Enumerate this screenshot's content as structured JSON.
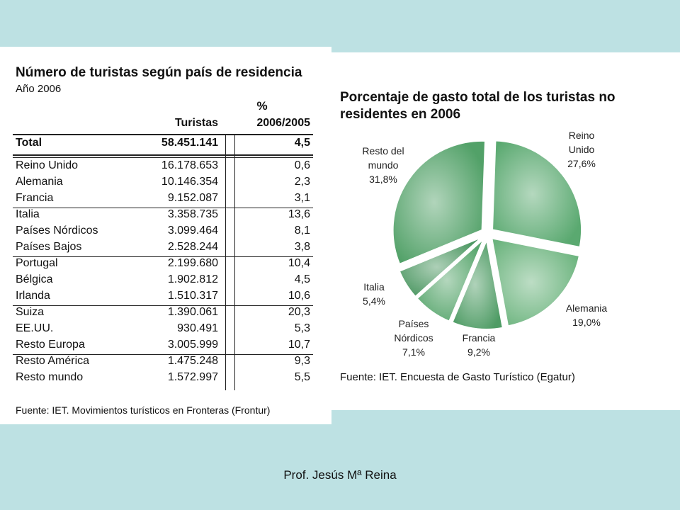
{
  "table": {
    "title": "Número de turistas según país de residencia",
    "subtitle": "Año 2006",
    "col_turistas": "Turistas",
    "col_pct_symbol": "%",
    "col_pct": "2006/2005",
    "total": {
      "name": "Total",
      "turistas": "58.451.141",
      "pct": "4,5"
    },
    "rows": [
      {
        "name": "Reino Unido",
        "turistas": "16.178.653",
        "pct": "0,6"
      },
      {
        "name": "Alemania",
        "turistas": "10.146.354",
        "pct": "2,3"
      },
      {
        "name": "Francia",
        "turistas": "9.152.087",
        "pct": "3,1"
      },
      {
        "name": "Italia",
        "turistas": "3.358.735",
        "pct": "13,6"
      },
      {
        "name": "Países Nórdicos",
        "turistas": "3.099.464",
        "pct": "8,1"
      },
      {
        "name": "Países Bajos",
        "turistas": "2.528.244",
        "pct": "3,8"
      },
      {
        "name": "Portugal",
        "turistas": "2.199.680",
        "pct": "10,4"
      },
      {
        "name": "Bélgica",
        "turistas": "1.902.812",
        "pct": "4,5"
      },
      {
        "name": "Irlanda",
        "turistas": "1.510.317",
        "pct": "10,6"
      },
      {
        "name": "Suiza",
        "turistas": "1.390.061",
        "pct": "20,3"
      },
      {
        "name": "EE.UU.",
        "turistas": "930.491",
        "pct": "5,3"
      },
      {
        "name": "Resto Europa",
        "turistas": "3.005.999",
        "pct": "10,7"
      },
      {
        "name": "Resto América",
        "turistas": "1.475.248",
        "pct": "9,3"
      },
      {
        "name": "Resto mundo",
        "turistas": "1.572.997",
        "pct": "5,5"
      }
    ],
    "source": "Fuente: IET. Movimientos turísticos en Fronteras (Frontur)"
  },
  "chart_data": {
    "type": "pie",
    "title": "Porcentaje de gasto total de los turistas no residentes en 2006",
    "slices": [
      {
        "label_lines": [
          "Reino",
          "Unido",
          "27,6%"
        ],
        "value": 27.6,
        "color": "#5aa970"
      },
      {
        "label_lines": [
          "Alemania",
          "19,0%"
        ],
        "value": 19.0,
        "color": "#6cb47e"
      },
      {
        "label_lines": [
          "Francia",
          "9,2%"
        ],
        "value": 9.2,
        "color": "#4f9c65"
      },
      {
        "label_lines": [
          "Países",
          "Nórdicos",
          "7,1%"
        ],
        "value": 7.1,
        "color": "#58a66d"
      },
      {
        "label_lines": [
          "Italia",
          "5,4%"
        ],
        "value": 5.4,
        "color": "#4a9660"
      },
      {
        "label_lines": [
          "Resto del",
          "mundo",
          "31,8%"
        ],
        "value": 31.8,
        "color": "#52a168"
      }
    ],
    "source": "Fuente: IET. Encuesta de Gasto Turístico (Egatur)"
  },
  "footer": "Prof. Jesús Mª Reina"
}
